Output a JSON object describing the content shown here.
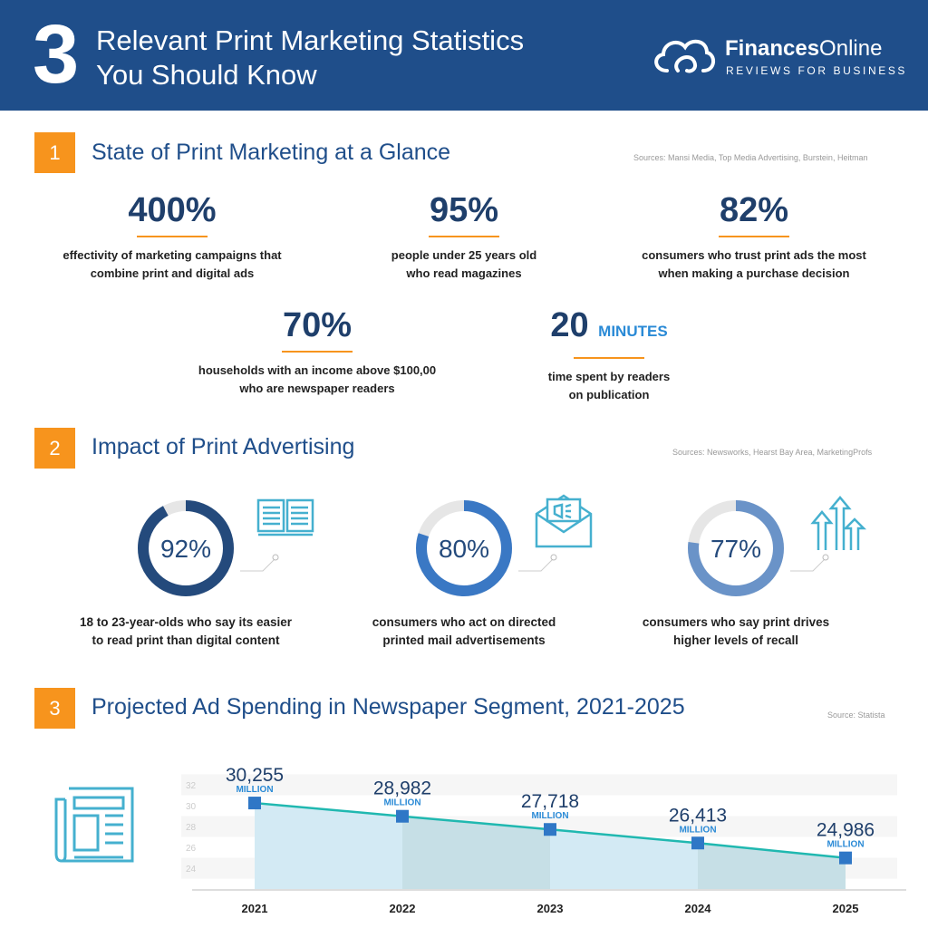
{
  "header": {
    "number": "3",
    "title_line1": "Relevant Print Marketing Statistics",
    "title_line2": "You Should Know",
    "logo_brand_bold": "Finances",
    "logo_brand_light": "Online",
    "logo_tagline": "REVIEWS FOR BUSINESS"
  },
  "sections": [
    {
      "number": "1",
      "title": "State of Print Marketing at a Glance",
      "sources": "Sources: Mansi Media, Top Media Advertising, Burstein, Heitman",
      "stats": [
        {
          "value": "400%",
          "unit": "",
          "line1": "effectivity of marketing campaigns that",
          "line2": "combine print and digital ads"
        },
        {
          "value": "95%",
          "unit": "",
          "line1": "people under 25 years old",
          "line2": "who read magazines"
        },
        {
          "value": "82%",
          "unit": "",
          "line1": "consumers who trust print ads the most",
          "line2": "when making a purchase decision"
        },
        {
          "value": "70%",
          "unit": "",
          "line1": "households with an income above $100,00",
          "line2": "who are newspaper readers"
        },
        {
          "value": "20",
          "unit": "MINUTES",
          "line1": "time spent by readers",
          "line2": "on publication"
        }
      ]
    },
    {
      "number": "2",
      "title": "Impact of Print Advertising",
      "sources": "Sources: Newsworks, Hearst Bay Area, MarketingProfs",
      "donuts": [
        {
          "label": "92%",
          "percent": 92,
          "color": "#244a7c",
          "icon": "open-book-icon",
          "line1": "18 to 23-year-olds who say its easier",
          "line2": "to read print than digital content"
        },
        {
          "label": "80%",
          "percent": 80,
          "color": "#3a78c4",
          "icon": "envelope-megaphone-icon",
          "line1": "consumers who act on directed",
          "line2": "printed mail advertisements"
        },
        {
          "label": "77%",
          "percent": 77,
          "color": "#6a93c8",
          "icon": "arrows-up-icon",
          "line1": "consumers who say print drives",
          "line2": "higher levels of recall"
        }
      ]
    },
    {
      "number": "3",
      "title": "Projected Ad Spending in Newspaper Segment, 2021-2025",
      "sources": "Source: Statista",
      "icon": "newspaper-icon"
    }
  ],
  "colors": {
    "header": "#1f4e8a",
    "accent": "#f7941d",
    "line": "#20b8b0",
    "marker": "#2f77c6",
    "area": "#d3eaf4",
    "area_alt": "#c6dfe6"
  },
  "chart_data": {
    "type": "line",
    "title": "",
    "xlabel": "",
    "ylabel": "",
    "categories": [
      "2021",
      "2022",
      "2023",
      "2024",
      "2025"
    ],
    "values": [
      30.255,
      28.982,
      27.718,
      26.413,
      24.986
    ],
    "value_labels": [
      "30,255",
      "28,982",
      "27,718",
      "26,413",
      "24,986"
    ],
    "value_unit": "MILLION",
    "yticks": [
      "24",
      "26",
      "28",
      "30",
      "32"
    ],
    "ylim": [
      22,
      34
    ],
    "grid": true,
    "area_fill": true
  }
}
